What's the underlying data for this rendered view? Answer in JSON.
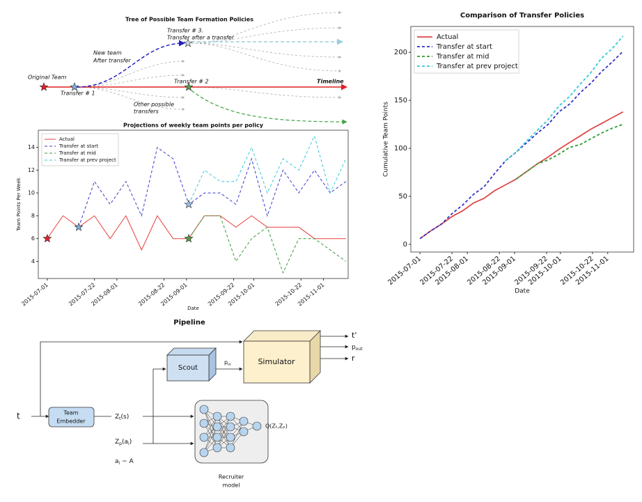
{
  "tree": {
    "title": "Tree of Possible Team Formation Policies",
    "labels": [
      "Original Team",
      "Transfer # 1",
      "New team",
      "After transfer",
      "Transfer # 3.",
      "Transfer after a transfer",
      "Transfer # 2",
      "Timeline",
      "Other possible",
      "transfers"
    ]
  },
  "chart_data": [
    {
      "type": "line",
      "title": "Projections of weekly team points per policy",
      "xlabel": "Date",
      "ylabel": "Team Points Per Week",
      "x": [
        "2015-07-01",
        "2015-07-08",
        "2015-07-15",
        "2015-07-22",
        "2015-07-29",
        "2015-08-05",
        "2015-08-12",
        "2015-08-19",
        "2015-08-26",
        "2015-09-02",
        "2015-09-09",
        "2015-09-16",
        "2015-09-23",
        "2015-09-30",
        "2015-10-07",
        "2015-10-14",
        "2015-10-21",
        "2015-10-28",
        "2015-11-04",
        "2015-11-11"
      ],
      "series": [
        {
          "name": "Actual",
          "color": "#e8403a",
          "line_style": "solid",
          "marker_color": "#e8202a",
          "values": [
            6,
            8,
            7,
            8,
            6,
            8,
            5,
            8,
            6,
            6,
            8,
            8,
            7,
            8,
            7,
            7,
            7,
            6,
            6,
            6
          ]
        },
        {
          "name": "Transfer at start",
          "color": "#3a3ad0",
          "line_style": "dashed",
          "marker_color": "#7aaee0",
          "values": [
            null,
            null,
            7,
            11,
            9,
            11,
            8,
            14,
            13,
            9,
            10,
            10,
            9,
            13,
            8,
            12,
            10,
            12,
            10,
            11
          ]
        },
        {
          "name": "Transfer at mid",
          "color": "#3a9a3a",
          "line_style": "dashed",
          "marker_color": "#5a9a4a",
          "values": [
            null,
            null,
            null,
            null,
            null,
            null,
            null,
            null,
            null,
            6,
            8,
            8,
            4,
            6,
            7,
            3,
            6,
            6,
            5,
            4
          ]
        },
        {
          "name": "Transfer at prev project",
          "color": "#3ac8d8",
          "line_style": "dashed",
          "marker_color": "#9ac0e8",
          "values": [
            null,
            null,
            null,
            null,
            null,
            null,
            null,
            null,
            null,
            9,
            12,
            11,
            11,
            14,
            10,
            13,
            12,
            15,
            10,
            13
          ]
        }
      ],
      "start_marker": "star",
      "xlim": [
        "2015-06-27",
        "2015-11-12"
      ],
      "xticks": [
        "2015-07-01",
        "2015-07-22",
        "2015-08-01",
        "2015-08-22",
        "2015-09-01",
        "2015-09-22",
        "2015-10-01",
        "2015-10-22",
        "2015-11-01"
      ],
      "ylim": [
        2.5,
        15.5
      ],
      "yticks": [
        4,
        6,
        8,
        10,
        12,
        14
      ],
      "legend": "upper-left",
      "grid": false
    },
    {
      "type": "line",
      "title": "Comparison of Transfer Policies",
      "xlabel": "Date",
      "ylabel": "Cumulative Team Points",
      "x": [
        "2015-07-01",
        "2015-07-08",
        "2015-07-15",
        "2015-07-22",
        "2015-07-29",
        "2015-08-05",
        "2015-08-12",
        "2015-08-19",
        "2015-08-26",
        "2015-09-02",
        "2015-09-09",
        "2015-09-16",
        "2015-09-23",
        "2015-09-30",
        "2015-10-07",
        "2015-10-14",
        "2015-10-21",
        "2015-10-28",
        "2015-11-04",
        "2015-11-11"
      ],
      "series": [
        {
          "name": "Actual",
          "color": "#e04848",
          "line_style": "solid",
          "values": [
            6,
            14,
            21,
            29,
            35,
            43,
            48,
            56,
            62,
            68,
            76,
            84,
            91,
            99,
            106,
            113,
            120,
            126,
            132,
            138
          ]
        },
        {
          "name": "Transfer at start",
          "color": "#3030c8",
          "line_style": "dashed",
          "values": [
            6,
            14,
            21,
            32,
            41,
            52,
            60,
            74,
            87,
            96,
            106,
            116,
            125,
            138,
            146,
            158,
            168,
            180,
            190,
            201
          ]
        },
        {
          "name": "Transfer at mid",
          "color": "#309a30",
          "line_style": "dashed",
          "values": [
            null,
            null,
            null,
            null,
            null,
            null,
            null,
            null,
            null,
            68,
            76,
            84,
            88,
            94,
            101,
            104,
            110,
            116,
            121,
            125
          ]
        },
        {
          "name": "Transfer at prev project",
          "color": "#30c8d8",
          "line_style": "dashed",
          "values": [
            null,
            null,
            null,
            null,
            null,
            null,
            null,
            null,
            87,
            96,
            108,
            119,
            130,
            144,
            154,
            167,
            179,
            194,
            204,
            217
          ]
        }
      ],
      "xlim": [
        "2015-06-25",
        "2015-11-18"
      ],
      "xticks": [
        "2015-07-01",
        "2015-07-22",
        "2015-08-01",
        "2015-08-22",
        "2015-09-01",
        "2015-09-22",
        "2015-10-01",
        "2015-10-22",
        "2015-11-01"
      ],
      "ylim": [
        -8,
        227
      ],
      "yticks": [
        0,
        50,
        100,
        150,
        200
      ],
      "legend": "upper-left",
      "grid": false
    }
  ],
  "pipeline": {
    "title": "Pipeline",
    "t_prime": "t'",
    "p_out": {
      "base": "p",
      "sub": "out"
    },
    "r": "r",
    "simulator": "Simulator",
    "scout": "Scout",
    "p_in": {
      "base": "p",
      "sub": "in"
    },
    "t": "t",
    "embedder": [
      "Team",
      "Embedder"
    ],
    "zt": {
      "base": "Z",
      "sub": "t",
      "rest": "(s)"
    },
    "zp": {
      "base": "Z",
      "sub": "p",
      "rest": "(a",
      "sub2": "i",
      "rest2": ")"
    },
    "ai": {
      "base": "a",
      "sub": "i",
      "rest": " ~ A"
    },
    "q": "Q(Zₜ,Zₚ)",
    "recruiter": [
      "Recruiter",
      "model"
    ]
  }
}
